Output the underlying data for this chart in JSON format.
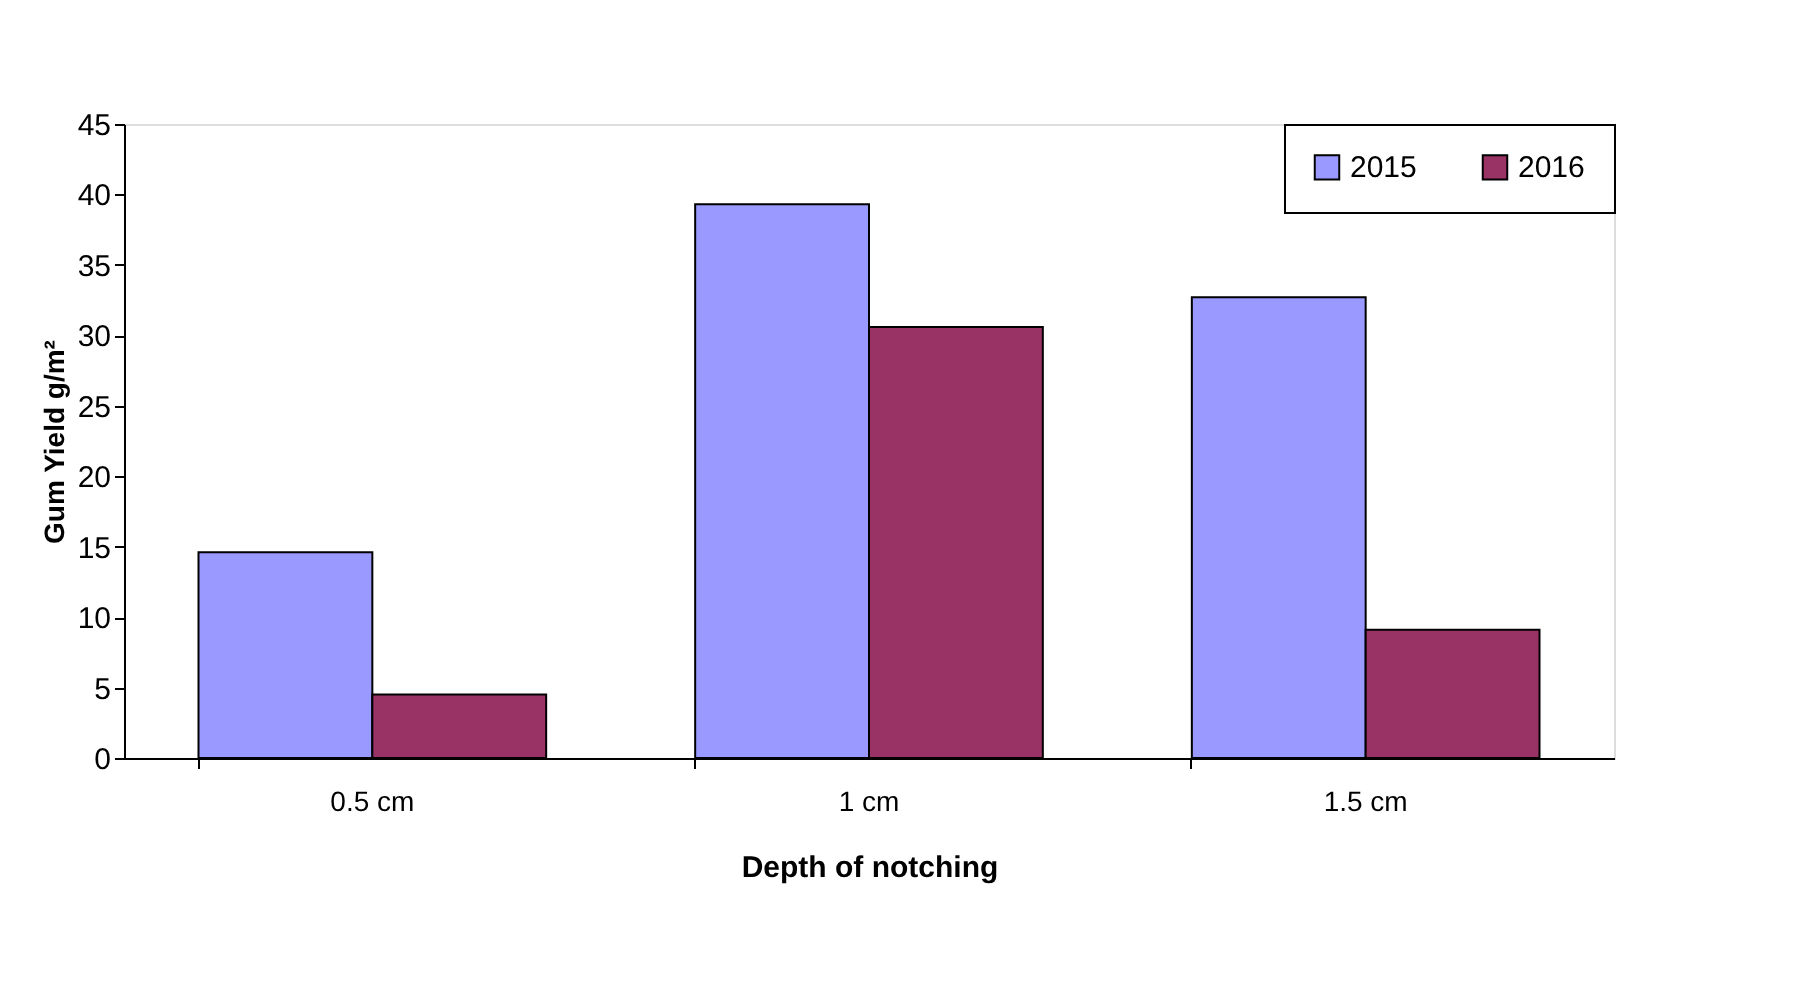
{
  "chart_data": {
    "type": "bar",
    "xlabel": "Depth of notching",
    "ylabel": "Gum Yield g/m²",
    "categories": [
      "0.5 cm",
      "1 cm",
      "1.5 cm"
    ],
    "series": [
      {
        "name": "2015",
        "color": "#9999ff",
        "values": [
          14.6,
          39.3,
          32.7
        ]
      },
      {
        "name": "2016",
        "color": "#993366",
        "values": [
          4.5,
          30.6,
          9.1
        ]
      }
    ],
    "ylim": [
      0,
      45
    ],
    "yticks": [
      0,
      5,
      10,
      15,
      20,
      25,
      30,
      35,
      40,
      45
    ],
    "grid": false,
    "legend": "top right"
  }
}
